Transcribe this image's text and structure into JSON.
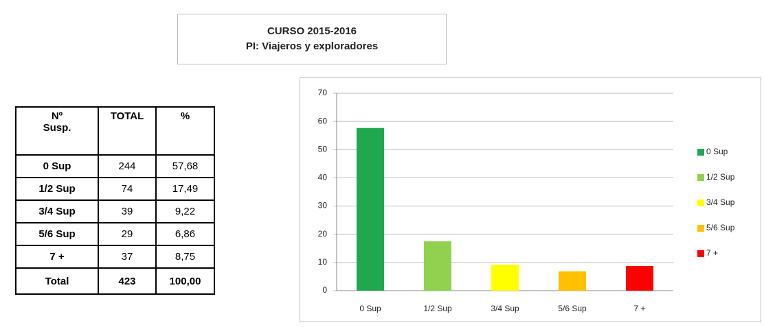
{
  "header": {
    "title": "CURSO 2015-2016",
    "subtitle": "PI: Viajeros y exploradores"
  },
  "table": {
    "columns": [
      "Nº Susp.",
      "TOTAL",
      "%"
    ],
    "rows": [
      [
        "0 Sup",
        "244",
        "57,68"
      ],
      [
        "1/2 Sup",
        "74",
        "17,49"
      ],
      [
        "3/4 Sup",
        "39",
        "9,22"
      ],
      [
        "5/6 Sup",
        "29",
        "6,86"
      ],
      [
        "7 +",
        "37",
        "8,75"
      ],
      [
        "Total",
        "423",
        "100,00"
      ]
    ]
  },
  "chart_data": {
    "type": "bar",
    "categories": [
      "0 Sup",
      "1/2 Sup",
      "3/4 Sup",
      "5/6 Sup",
      "7 +"
    ],
    "values": [
      57.68,
      17.49,
      9.22,
      6.86,
      8.75
    ],
    "colors": [
      "#1fa84f",
      "#92d050",
      "#ffff00",
      "#ffc000",
      "#ff0000"
    ],
    "ylim": [
      0,
      70
    ],
    "yticks": [
      0,
      10,
      20,
      30,
      40,
      50,
      60,
      70
    ],
    "grid": true,
    "legend": "right"
  }
}
